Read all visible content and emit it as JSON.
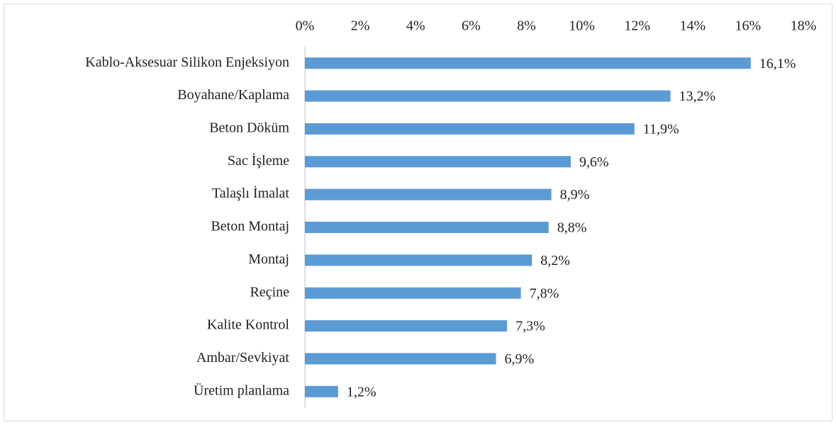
{
  "chart_data": {
    "type": "bar",
    "orientation": "horizontal",
    "categories": [
      "Kablo-Aksesuar Silikon Enjeksiyon",
      "Boyahane/Kaplama",
      "Beton Döküm",
      "Sac İşleme",
      "Talaşlı İmalat",
      "Beton Montaj",
      "Montaj",
      "Reçine",
      "Kalite Kontrol",
      "Ambar/Sevkiyat",
      "Üretim planlama"
    ],
    "values": [
      16.1,
      13.2,
      11.9,
      9.6,
      8.9,
      8.8,
      8.2,
      7.8,
      7.3,
      6.9,
      1.2
    ],
    "value_labels": [
      "16,1%",
      "13,2%",
      "11,9%",
      "9,6%",
      "8,9%",
      "8,8%",
      "8,2%",
      "7,8%",
      "7,3%",
      "6,9%",
      "1,2%"
    ],
    "color": "#5b9bd5",
    "xlim": [
      0,
      18
    ],
    "xticks": [
      {
        "value": 0,
        "label": "0%"
      },
      {
        "value": 2,
        "label": "2%"
      },
      {
        "value": 4,
        "label": "4%"
      },
      {
        "value": 6,
        "label": "6%"
      },
      {
        "value": 8,
        "label": "8%"
      },
      {
        "value": 10,
        "label": "10%"
      },
      {
        "value": 12,
        "label": "12%"
      },
      {
        "value": 14,
        "label": "14%"
      },
      {
        "value": 16,
        "label": "16%"
      },
      {
        "value": 18,
        "label": "18%"
      }
    ],
    "grid": false
  }
}
